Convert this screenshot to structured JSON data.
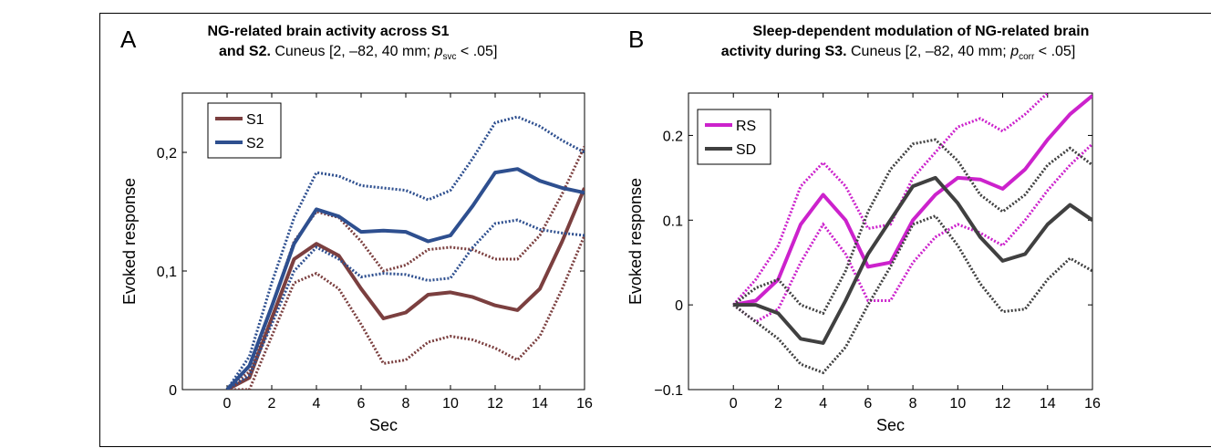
{
  "panels": [
    {
      "letter": "A",
      "title_bold": "NG-related brain activity across  S1",
      "title_bold2": "and S2.",
      "title_rest": " Cuneus [2, –82, 40 mm; ",
      "p_main": "p",
      "p_sub": "svc",
      "p_tail": " < .05]"
    },
    {
      "letter": "B",
      "title_bold": "Sleep-dependent modulation of NG-related brain",
      "title_bold2": "activity during S3.",
      "title_rest": "  Cuneus [2, –82, 40 mm; ",
      "p_main": "p",
      "p_sub": "corr",
      "p_tail": " < .05]"
    }
  ],
  "chart_data": [
    {
      "type": "line",
      "xlabel": "Sec",
      "ylabel": "Evoked response",
      "xlim": [
        -2,
        16
      ],
      "ylim": [
        0,
        0.25
      ],
      "xticks": [
        0,
        2,
        4,
        6,
        8,
        10,
        12,
        14,
        16
      ],
      "xtick_labels": [
        "0",
        "2",
        "4",
        "6",
        "8",
        "10",
        "12",
        "14",
        "16"
      ],
      "yticks": [
        0,
        0.1,
        0.2
      ],
      "ytick_labels": [
        "0",
        "0,1",
        "0,2"
      ],
      "grid": false,
      "legend_position": "top-left",
      "series": [
        {
          "name": "S1",
          "color": "#7b3f3f",
          "x": [
            0,
            1,
            2,
            3,
            4,
            5,
            6,
            7,
            8,
            9,
            10,
            11,
            12,
            13,
            14,
            15,
            16
          ],
          "values": [
            0,
            0.01,
            0.06,
            0.11,
            0.123,
            0.113,
            0.085,
            0.06,
            0.065,
            0.08,
            0.082,
            0.078,
            0.071,
            0.067,
            0.085,
            0.125,
            0.17
          ],
          "upper": [
            0,
            0.015,
            0.07,
            0.125,
            0.15,
            0.145,
            0.125,
            0.1,
            0.105,
            0.118,
            0.12,
            0.118,
            0.11,
            0.11,
            0.13,
            0.165,
            0.205
          ],
          "lower": [
            0,
            0.0,
            0.045,
            0.09,
            0.098,
            0.085,
            0.055,
            0.022,
            0.025,
            0.04,
            0.045,
            0.042,
            0.035,
            0.025,
            0.045,
            0.085,
            0.13
          ]
        },
        {
          "name": "S2",
          "color": "#2e4f8f",
          "x": [
            0,
            1,
            2,
            3,
            4,
            5,
            6,
            7,
            8,
            9,
            10,
            11,
            12,
            13,
            14,
            15,
            16
          ],
          "values": [
            0,
            0.02,
            0.07,
            0.123,
            0.152,
            0.146,
            0.133,
            0.134,
            0.133,
            0.125,
            0.13,
            0.155,
            0.183,
            0.186,
            0.176,
            0.17,
            0.166
          ],
          "upper": [
            0,
            0.028,
            0.09,
            0.145,
            0.183,
            0.18,
            0.172,
            0.17,
            0.168,
            0.16,
            0.168,
            0.195,
            0.225,
            0.23,
            0.222,
            0.21,
            0.2
          ],
          "lower": [
            0,
            0.012,
            0.055,
            0.1,
            0.12,
            0.11,
            0.095,
            0.098,
            0.097,
            0.092,
            0.094,
            0.12,
            0.14,
            0.143,
            0.135,
            0.132,
            0.13
          ]
        }
      ]
    },
    {
      "type": "line",
      "xlabel": "Sec",
      "ylabel": "Evoked response",
      "xlim": [
        -2,
        16
      ],
      "ylim": [
        -0.1,
        0.25
      ],
      "xticks": [
        0,
        2,
        4,
        6,
        8,
        10,
        12,
        14,
        16
      ],
      "xtick_labels": [
        "0",
        "2",
        "4",
        "6",
        "8",
        "10",
        "12",
        "14",
        "16"
      ],
      "yticks": [
        -0.1,
        0,
        0.1,
        0.2
      ],
      "ytick_labels": [
        "−0.1",
        "0",
        "0.1",
        "0.2"
      ],
      "grid": false,
      "legend_position": "top-left",
      "series": [
        {
          "name": "RS",
          "color": "#cc22cc",
          "x": [
            0,
            1,
            2,
            3,
            4,
            5,
            6,
            7,
            8,
            9,
            10,
            11,
            12,
            13,
            14,
            15,
            16
          ],
          "values": [
            0,
            0.005,
            0.03,
            0.095,
            0.13,
            0.1,
            0.045,
            0.05,
            0.1,
            0.13,
            0.15,
            0.148,
            0.137,
            0.16,
            0.195,
            0.225,
            0.247
          ],
          "upper": [
            0,
            0.03,
            0.07,
            0.14,
            0.168,
            0.14,
            0.09,
            0.095,
            0.15,
            0.18,
            0.21,
            0.22,
            0.205,
            0.225,
            0.25,
            0.27,
            0.29
          ],
          "lower": [
            0,
            -0.02,
            -0.005,
            0.05,
            0.095,
            0.06,
            0.005,
            0.005,
            0.05,
            0.08,
            0.095,
            0.085,
            0.07,
            0.1,
            0.135,
            0.165,
            0.19
          ]
        },
        {
          "name": "SD",
          "color": "#404040",
          "x": [
            0,
            1,
            2,
            3,
            4,
            5,
            6,
            7,
            8,
            9,
            10,
            11,
            12,
            13,
            14,
            15,
            16
          ],
          "values": [
            0,
            0,
            -0.01,
            -0.04,
            -0.045,
            0.005,
            0.06,
            0.1,
            0.14,
            0.15,
            0.12,
            0.08,
            0.052,
            0.06,
            0.095,
            0.118,
            0.1
          ],
          "upper": [
            0,
            0.02,
            0.03,
            0.0,
            -0.01,
            0.04,
            0.11,
            0.16,
            0.19,
            0.195,
            0.17,
            0.13,
            0.11,
            0.13,
            0.165,
            0.185,
            0.165
          ],
          "lower": [
            0,
            -0.02,
            -0.04,
            -0.07,
            -0.08,
            -0.05,
            0.0,
            0.045,
            0.095,
            0.105,
            0.07,
            0.025,
            -0.008,
            -0.005,
            0.03,
            0.055,
            0.04
          ]
        }
      ]
    }
  ]
}
